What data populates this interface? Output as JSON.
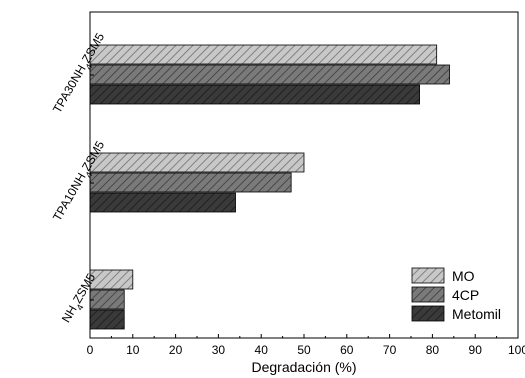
{
  "chart_data": {
    "type": "bar",
    "orientation": "horizontal",
    "categories": [
      "NH4ZSM5",
      "TPA10NH4ZSM5",
      "TPA30NH4ZSM5"
    ],
    "category_labels": [
      {
        "prefix": "NH",
        "sub": "4",
        "suffix": "ZSM5"
      },
      {
        "prefix": "TPA10NH",
        "sub": "4",
        "suffix": "ZSM5"
      },
      {
        "prefix": "TPA30NH",
        "sub": "4",
        "suffix": "ZSM5"
      }
    ],
    "series": [
      {
        "name": "MO",
        "values": [
          10,
          50,
          81
        ],
        "color": "#c8c8c8",
        "hatch": "#6e6e6e"
      },
      {
        "name": "4CP",
        "values": [
          8,
          47,
          84
        ],
        "color": "#7a7a7a",
        "hatch": "#3a3a3a"
      },
      {
        "name": "Metomil",
        "values": [
          8,
          34,
          77
        ],
        "color": "#3a3a3a",
        "hatch": "#1a1a1a"
      }
    ],
    "xlabel": "Degradación (%)",
    "ylabel": "",
    "xlim": [
      0,
      100
    ],
    "xticks": [
      0,
      10,
      20,
      30,
      40,
      50,
      60,
      70,
      80,
      90,
      100
    ],
    "legend_position": "bottom-right",
    "grid": false
  }
}
